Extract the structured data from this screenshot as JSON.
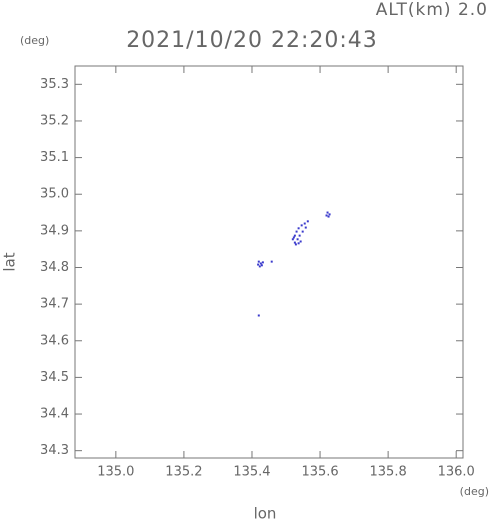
{
  "chart_data": {
    "type": "scatter",
    "title": "2021/10/20 22:20:43",
    "annotation": "ALT(km) 2.0",
    "y_unit": "(deg)",
    "x_unit": "(deg)",
    "xlabel": "lon",
    "ylabel": "lat",
    "color": "#3a3acc",
    "xlim": [
      134.88,
      136.02
    ],
    "ylim": [
      34.28,
      35.35
    ],
    "xticks": [
      {
        "value": 135.0,
        "label": "135.0"
      },
      135.2,
      135.4,
      135.6,
      135.8,
      {
        "value": 136.0,
        "label": "136.0"
      }
    ],
    "yticks": [
      34.3,
      34.4,
      34.5,
      34.6,
      34.7,
      34.8,
      34.9,
      {
        "value": 35.0,
        "label": "35.0"
      },
      35.1,
      35.2,
      35.3
    ],
    "series": [
      {
        "x": [
          135.42,
          135.426,
          135.423,
          135.429,
          135.418,
          135.432,
          135.458,
          135.42,
          135.52,
          135.526,
          135.531,
          135.537,
          135.546,
          135.555,
          135.564,
          135.526,
          135.534,
          135.54,
          135.549,
          135.558,
          135.529,
          135.523,
          135.543,
          135.537,
          135.622,
          135.628,
          135.625,
          135.619
        ],
        "y": [
          34.816,
          34.811,
          34.803,
          34.806,
          34.808,
          34.814,
          34.816,
          34.669,
          34.877,
          34.887,
          34.898,
          34.907,
          34.915,
          34.92,
          34.926,
          34.868,
          34.877,
          34.887,
          34.898,
          34.909,
          34.863,
          34.882,
          34.871,
          34.866,
          34.95,
          34.945,
          34.939,
          34.942
        ]
      }
    ]
  }
}
